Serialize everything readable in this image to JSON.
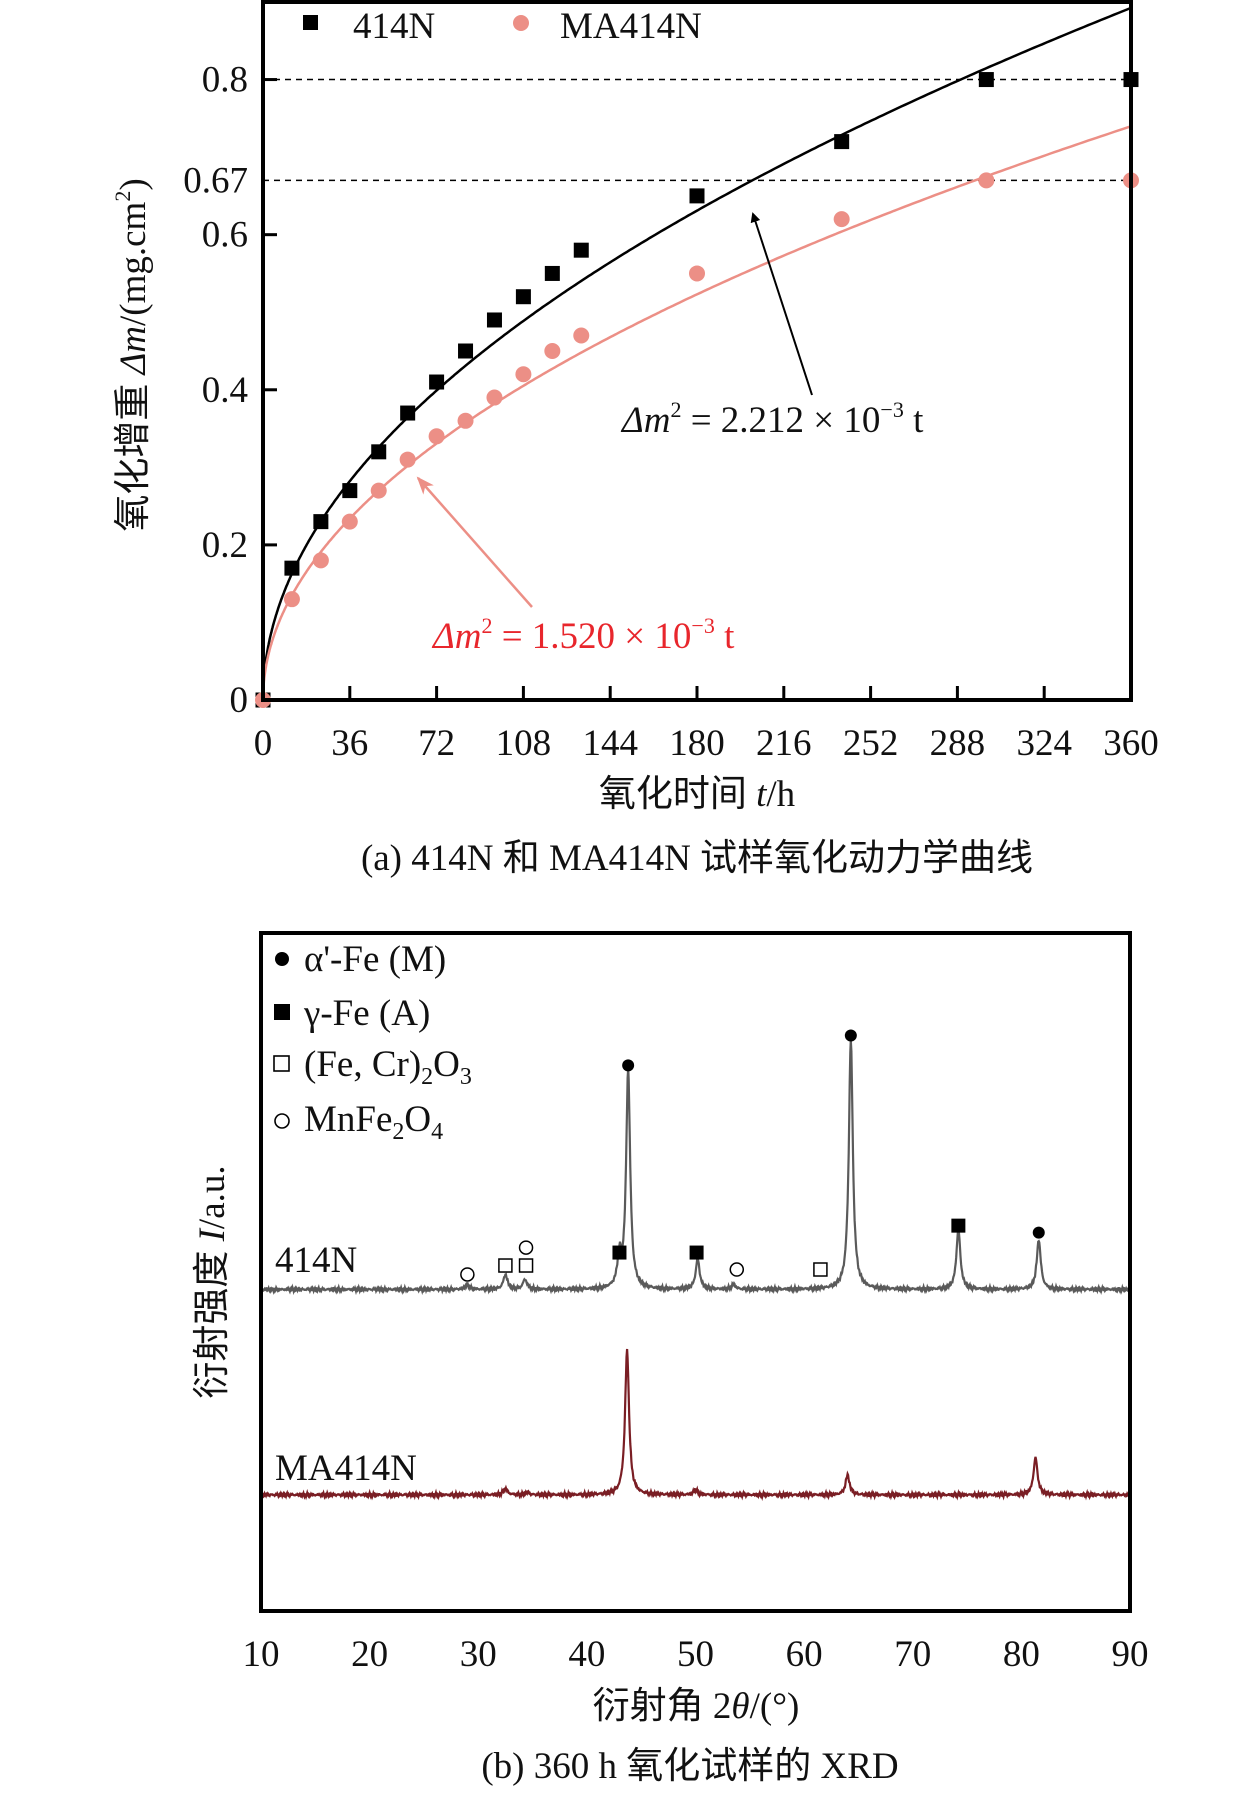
{
  "chart_data": [
    {
      "type": "scatter",
      "caption": "(a) 414N 和 MA414N 试样氧化动力学曲线",
      "xlabel_prefix": "氧化时间 ",
      "xlabel_var": "t",
      "xlabel_unit": "/h",
      "ylabel_prefix": "氧化增重 ",
      "ylabel_var": "Δm",
      "ylabel_unit": "/(mg.cm",
      "ylabel_sup": "2",
      "ylabel_end": ")",
      "xlim": [
        0,
        360
      ],
      "ylim": [
        0,
        0.9
      ],
      "xticks": [
        0,
        36,
        72,
        108,
        144,
        180,
        216,
        252,
        288,
        324,
        360
      ],
      "yticks": [
        0,
        0.2,
        0.4,
        0.6,
        0.8
      ],
      "ytick_labels": [
        "0",
        "0.2",
        "0.4",
        "0.6",
        "0.8"
      ],
      "extra_ytick": {
        "value": 0.67,
        "label": "0.67"
      },
      "reference_lines": [
        0.8,
        0.67
      ],
      "legend_placement": "top-left",
      "x": [
        0,
        12,
        24,
        36,
        48,
        60,
        72,
        84,
        96,
        108,
        120,
        132,
        180,
        240,
        300,
        360
      ],
      "series": [
        {
          "name": "414N",
          "marker": "square",
          "color": "#000000",
          "values": [
            0,
            0.17,
            0.23,
            0.27,
            0.32,
            0.37,
            0.41,
            0.45,
            0.49,
            0.52,
            0.55,
            0.58,
            0.65,
            0.72,
            0.8,
            0.8
          ]
        },
        {
          "name": "MA414N",
          "marker": "circle",
          "color": "#ec8f86",
          "values": [
            0,
            0.13,
            0.18,
            0.23,
            0.27,
            0.31,
            0.34,
            0.36,
            0.39,
            0.42,
            0.45,
            0.47,
            0.55,
            0.62,
            0.67,
            0.67
          ]
        }
      ],
      "fits": [
        {
          "series": "414N",
          "k": 0.002212,
          "color": "#000000",
          "eq_var": "Δm",
          "eq_sup": "2",
          "eq_mid": " = 2.212 × 10",
          "eq_exp": "−3",
          "eq_end": " t"
        },
        {
          "series": "MA414N",
          "k": 0.00152,
          "color": "#ec8f86",
          "text_color": "#e8262c",
          "eq_var": "Δm",
          "eq_sup": "2",
          "eq_mid": " = 1.520 × 10",
          "eq_exp": "−3",
          "eq_end": " t"
        }
      ]
    },
    {
      "type": "line",
      "caption": "(b) 360 h 氧化试样的 XRD",
      "xlabel_prefix": "衍射角 2",
      "xlabel_var": "θ",
      "xlabel_unit": "/(°)",
      "ylabel_prefix": "衍射强度 ",
      "ylabel_var": "I",
      "ylabel_unit": "/a.u.",
      "xlim": [
        10,
        90
      ],
      "ylim": [
        0,
        272
      ],
      "xticks": [
        10,
        20,
        30,
        40,
        50,
        60,
        70,
        80,
        90
      ],
      "legend_placement": "top-left",
      "legend": [
        {
          "symbol": "filled-circle",
          "label": "α'-Fe (M)"
        },
        {
          "symbol": "filled-square",
          "label": "γ-Fe (A)"
        },
        {
          "symbol": "open-square",
          "label": "(Fe, Cr)",
          "sub1": "2",
          "mid": "O",
          "sub2": "3"
        },
        {
          "symbol": "open-circle",
          "label": "MnFe",
          "sub1": "2",
          "mid": "O",
          "sub2": "4"
        }
      ],
      "series": [
        {
          "name": "414N",
          "color": "#5a5a5a",
          "baseline": 129,
          "peaks": [
            [
              29.0,
              2
            ],
            [
              32.5,
              6
            ],
            [
              34.3,
              4
            ],
            [
              43.0,
              12
            ],
            [
              43.8,
              88
            ],
            [
              50.2,
              12
            ],
            [
              53.5,
              2
            ],
            [
              64.3,
              100
            ],
            [
              74.2,
              24
            ],
            [
              81.6,
              20
            ]
          ],
          "markers": [
            {
              "symbol": "open-circle",
              "x": 29.0,
              "y": 135
            },
            {
              "symbol": "open-square",
              "x": 32.5,
              "y": 138.6
            },
            {
              "symbol": "open-square",
              "x": 34.4,
              "y": 138.6
            },
            {
              "symbol": "open-circle",
              "x": 34.4,
              "y": 145.8
            },
            {
              "symbol": "filled-square",
              "x": 43.0,
              "y": 143.8
            },
            {
              "symbol": "filled-square",
              "x": 50.1,
              "y": 143.8
            },
            {
              "symbol": "open-circle",
              "x": 53.8,
              "y": 137
            },
            {
              "symbol": "open-square",
              "x": 61.5,
              "y": 137
            },
            {
              "symbol": "filled-square",
              "x": 74.2,
              "y": 154.6
            },
            {
              "symbol": "filled-circle",
              "x": 81.6,
              "y": 151.8
            },
            {
              "symbol": "filled-circle",
              "x": 43.8,
              "y": 218.9
            },
            {
              "symbol": "filled-circle",
              "x": 64.3,
              "y": 230.9
            }
          ]
        },
        {
          "name": "MA414N",
          "color": "#7a1e24",
          "baseline": 46.6,
          "peaks": [
            [
              32.5,
              2.5
            ],
            [
              34.5,
              1
            ],
            [
              43.7,
              58
            ],
            [
              50.0,
              2
            ],
            [
              64.0,
              8
            ],
            [
              81.3,
              15
            ]
          ],
          "markers": []
        }
      ]
    }
  ]
}
